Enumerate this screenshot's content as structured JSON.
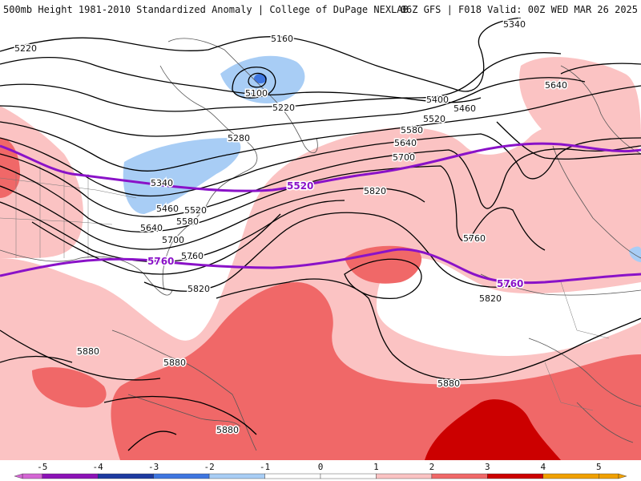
{
  "header": {
    "left_title": "500mb Height 1981-2010 Standardized Anomaly | College of DuPage NEXLAB",
    "right_title": "06Z GFS | F018 Valid: 00Z WED MAR 26 2025"
  },
  "colorbar": {
    "tick_labels": [
      "-5",
      "-4",
      "-3",
      "-2",
      "-1",
      "0",
      "1",
      "2",
      "3",
      "4",
      "5"
    ],
    "colors": [
      "#d466d4",
      "#8c12b6",
      "#1d3aa0",
      "#3e76e0",
      "#a8cdf5",
      "#ffffff",
      "#ffffff",
      "#fbc3c3",
      "#f06868",
      "#cc0000",
      "#f0a000"
    ]
  },
  "contours": {
    "labels": [
      {
        "id": "c5220a",
        "text": "5220"
      },
      {
        "id": "c5160",
        "text": "5160"
      },
      {
        "id": "c5100",
        "text": "5100"
      },
      {
        "id": "c5220b",
        "text": "5220"
      },
      {
        "id": "c5280",
        "text": "5280"
      },
      {
        "id": "c5340a",
        "text": "5340"
      },
      {
        "id": "c5460a",
        "text": "5460"
      },
      {
        "id": "c5520a",
        "text": "5520"
      },
      {
        "id": "c5580a",
        "text": "5580"
      },
      {
        "id": "c5640a",
        "text": "5640"
      },
      {
        "id": "c5700a",
        "text": "5700"
      },
      {
        "id": "c5760a",
        "text": "5760"
      },
      {
        "id": "c5820a",
        "text": "5820"
      },
      {
        "id": "c5880a",
        "text": "5880"
      },
      {
        "id": "c5880b",
        "text": "5880"
      },
      {
        "id": "c5880c",
        "text": "5880"
      },
      {
        "id": "c5400b",
        "text": "5400"
      },
      {
        "id": "c5460b",
        "text": "5460"
      },
      {
        "id": "c5520b",
        "text": "5520"
      },
      {
        "id": "c5580b",
        "text": "5580"
      },
      {
        "id": "c5640b",
        "text": "5640"
      },
      {
        "id": "c5700b",
        "text": "5700"
      },
      {
        "id": "c5820b",
        "text": "5820"
      },
      {
        "id": "c5760b",
        "text": "5760"
      },
      {
        "id": "c5820c",
        "text": "5820"
      },
      {
        "id": "c5880d",
        "text": "5880"
      },
      {
        "id": "c5340b",
        "text": "5340"
      },
      {
        "id": "c5640c",
        "text": "5640"
      }
    ],
    "reference_labels": [
      {
        "id": "r5520",
        "text": "5520"
      },
      {
        "id": "r5760a",
        "text": "5760"
      },
      {
        "id": "r5760b",
        "text": "5760"
      }
    ]
  }
}
